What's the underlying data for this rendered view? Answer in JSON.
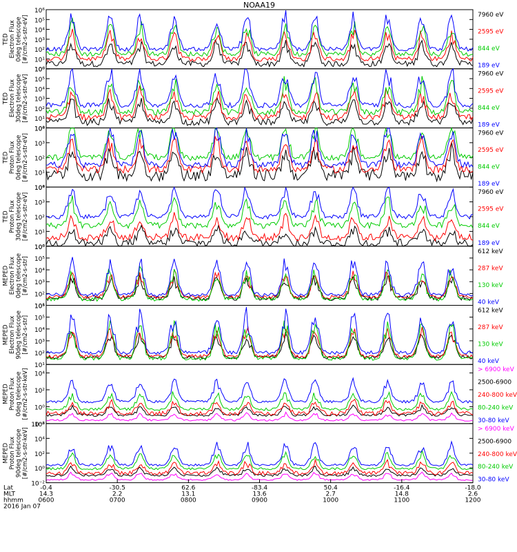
{
  "figure": {
    "title": "NOAA19",
    "footer": {
      "row_labels": [
        "Lat",
        "MLT",
        "hhmm",
        "2016 Jan 07"
      ],
      "columns": [
        {
          "lat": "-0.4",
          "mlt": "14.3",
          "hhmm": "0600"
        },
        {
          "lat": "-30.5",
          "mlt": "2.2",
          "hhmm": "0700"
        },
        {
          "lat": "62.6",
          "mlt": "13.1",
          "hhmm": "0800"
        },
        {
          "lat": "-83.4",
          "mlt": "13.6",
          "hhmm": "0900"
        },
        {
          "lat": "50.4",
          "mlt": "2.7",
          "hhmm": "1000"
        },
        {
          "lat": "-16.4",
          "mlt": "14.8",
          "hhmm": "1100"
        },
        {
          "lat": "-18.0",
          "mlt": "2.6",
          "hhmm": "1200"
        }
      ]
    }
  },
  "chart_data": [
    {
      "type": "line",
      "ylabel_lines": [
        "TED",
        "Electron Flux",
        "0deg telescope",
        "[#/cm2-s-str-eV]"
      ],
      "ylim_exp": [
        0,
        6
      ],
      "tick_labels": [
        "10⁰",
        "10¹",
        "10²",
        "10³",
        "10⁴",
        "10⁵",
        "10⁶"
      ],
      "tick_exps": [
        0,
        1,
        2,
        3,
        4,
        5,
        6
      ],
      "scale": "log",
      "series": [
        {
          "name": "7960 eV",
          "color": "#000000",
          "base": 0.5,
          "amp": 2.5,
          "noise": 0.6
        },
        {
          "name": "2595 eV",
          "color": "#ff0000",
          "base": 1.0,
          "amp": 3.0,
          "noise": 0.5
        },
        {
          "name": "844 eV",
          "color": "#00cc00",
          "base": 1.5,
          "amp": 3.5,
          "noise": 0.5
        },
        {
          "name": "189 eV",
          "color": "#0000ff",
          "base": 2.0,
          "amp": 4.0,
          "noise": 0.4
        }
      ]
    },
    {
      "type": "line",
      "ylabel_lines": [
        "TED",
        "Electron Flux",
        "30deg telescope",
        "[#/cm2-s-str-eV]"
      ],
      "ylim_exp": [
        0,
        6
      ],
      "tick_labels": [
        "10⁰",
        "10¹",
        "10²",
        "10³",
        "10⁴",
        "10⁵",
        "10⁶"
      ],
      "tick_exps": [
        0,
        1,
        2,
        3,
        4,
        5,
        6
      ],
      "scale": "log",
      "series": [
        {
          "name": "7960 eV",
          "color": "#000000",
          "base": 0.6,
          "amp": 2.5,
          "noise": 0.7
        },
        {
          "name": "2595 eV",
          "color": "#ff0000",
          "base": 1.1,
          "amp": 3.0,
          "noise": 0.6
        },
        {
          "name": "844 eV",
          "color": "#00cc00",
          "base": 1.6,
          "amp": 3.6,
          "noise": 0.6
        },
        {
          "name": "189 eV",
          "color": "#0000ff",
          "base": 2.3,
          "amp": 4.2,
          "noise": 0.5
        }
      ]
    },
    {
      "type": "line",
      "ylabel_lines": [
        "TED",
        "Proton Flux",
        "0deg telescope",
        "[#/cm2-s-str-eV]"
      ],
      "ylim_exp": [
        0,
        4
      ],
      "tick_labels": [
        "10⁰",
        "10¹",
        "10²",
        "10³",
        "10⁴"
      ],
      "tick_exps": [
        0,
        1,
        2,
        3,
        4
      ],
      "scale": "log",
      "series": [
        {
          "name": "7960 eV",
          "color": "#000000",
          "base": 0.8,
          "amp": 2.0,
          "noise": 0.8
        },
        {
          "name": "2595 eV",
          "color": "#ff0000",
          "base": 1.2,
          "amp": 2.3,
          "noise": 0.5
        },
        {
          "name": "844 eV",
          "color": "#00cc00",
          "base": 2.0,
          "amp": 2.6,
          "noise": 0.4
        },
        {
          "name": "189 eV",
          "color": "#0000ff",
          "base": 1.5,
          "amp": 2.9,
          "noise": 0.4
        }
      ]
    },
    {
      "type": "line",
      "ylabel_lines": [
        "TED",
        "Proton Flux",
        "30deg telescope",
        "[#/cm2-s-str-eV]"
      ],
      "ylim_exp": [
        0,
        4
      ],
      "tick_labels": [
        "10⁰",
        "10¹",
        "10²",
        "10³",
        "10⁴"
      ],
      "tick_exps": [
        0,
        1,
        2,
        3,
        4
      ],
      "scale": "log",
      "series": [
        {
          "name": "7960 eV",
          "color": "#000000",
          "base": 0.2,
          "amp": 1.2,
          "noise": 0.6
        },
        {
          "name": "2595 eV",
          "color": "#ff0000",
          "base": 0.6,
          "amp": 1.6,
          "noise": 0.5
        },
        {
          "name": "844 eV",
          "color": "#00cc00",
          "base": 1.4,
          "amp": 2.0,
          "noise": 0.4
        },
        {
          "name": "189 eV",
          "color": "#0000ff",
          "base": 2.0,
          "amp": 2.4,
          "noise": 0.3
        }
      ]
    },
    {
      "type": "line",
      "ylabel_lines": [
        "MEPED",
        "Electron Flux",
        "0deg telescope",
        "[#/cm2-s-str]"
      ],
      "ylim_exp": [
        1,
        6
      ],
      "tick_labels": [
        "10¹",
        "10²",
        "10³",
        "10⁴",
        "10⁵",
        "10⁶"
      ],
      "tick_exps": [
        1,
        2,
        3,
        4,
        5,
        6
      ],
      "scale": "log",
      "series": [
        {
          "name": "612 keV",
          "color": "#000000",
          "base": 1.6,
          "amp": 2.0,
          "noise": 0.4
        },
        {
          "name": "287 keV",
          "color": "#ff0000",
          "base": 1.7,
          "amp": 2.3,
          "noise": 0.3
        },
        {
          "name": "130 keV",
          "color": "#00cc00",
          "base": 1.5,
          "amp": 2.8,
          "noise": 0.3
        },
        {
          "name": "40 keV",
          "color": "#0000ff",
          "base": 1.9,
          "amp": 3.3,
          "noise": 0.3
        }
      ]
    },
    {
      "type": "line",
      "ylabel_lines": [
        "MEPED",
        "Electron Flux",
        "90deg telescope",
        "[#/cm2-s-str]"
      ],
      "ylim_exp": [
        1,
        6
      ],
      "tick_labels": [
        "10¹",
        "10²",
        "10³",
        "10⁴",
        "10⁵",
        "10⁶"
      ],
      "tick_exps": [
        1,
        2,
        3,
        4,
        5,
        6
      ],
      "scale": "log",
      "series": [
        {
          "name": "612 keV",
          "color": "#000000",
          "base": 1.6,
          "amp": 2.3,
          "noise": 0.3
        },
        {
          "name": "287 keV",
          "color": "#ff0000",
          "base": 1.7,
          "amp": 2.7,
          "noise": 0.3
        },
        {
          "name": "130 keV",
          "color": "#00cc00",
          "base": 1.5,
          "amp": 3.3,
          "noise": 0.3
        },
        {
          "name": "40 keV",
          "color": "#0000ff",
          "base": 2.0,
          "amp": 3.8,
          "noise": 0.3
        }
      ]
    },
    {
      "type": "line",
      "ylabel_lines": [
        "MEPED",
        "Proton Flux",
        "0deg telescope",
        "[#/cm2-s-str-keV]"
      ],
      "ylim_exp": [
        -2,
        5
      ],
      "tick_labels": [
        "10⁻²",
        "10⁰",
        "10²",
        "10⁴"
      ],
      "tick_exps": [
        -2,
        0,
        2,
        4
      ],
      "scale": "log",
      "series": [
        {
          "name": "> 6900 keV",
          "color": "#ff00ff",
          "base": -1.6,
          "amp": 0.9,
          "noise": 0.2
        },
        {
          "name": "2500-6900",
          "color": "#000000",
          "base": -1.0,
          "amp": 1.2,
          "noise": 0.3
        },
        {
          "name": "240-800 keV",
          "color": "#ff0000",
          "base": -0.8,
          "amp": 1.6,
          "noise": 0.5
        },
        {
          "name": "80-240 keV",
          "color": "#00cc00",
          "base": -0.3,
          "amp": 2.2,
          "noise": 0.3
        },
        {
          "name": "30-80 keV",
          "color": "#0000ff",
          "base": 0.6,
          "amp": 3.0,
          "noise": 0.3
        }
      ]
    },
    {
      "type": "line",
      "ylabel_lines": [
        "MEPED",
        "Proton Flux",
        "90deg telescope",
        "[#/cm2-s-str-keV]"
      ],
      "ylim_exp": [
        -2,
        6
      ],
      "tick_labels": [
        "10⁻²",
        "10⁰",
        "10²",
        "10⁴",
        "10⁶"
      ],
      "tick_exps": [
        -2,
        0,
        2,
        4,
        6
      ],
      "scale": "log",
      "series": [
        {
          "name": "> 6900 keV",
          "color": "#ff00ff",
          "base": -1.6,
          "amp": 1.0,
          "noise": 0.2
        },
        {
          "name": "2500-6900",
          "color": "#000000",
          "base": -1.0,
          "amp": 1.2,
          "noise": 0.3
        },
        {
          "name": "240-800 keV",
          "color": "#ff0000",
          "base": -0.7,
          "amp": 1.7,
          "noise": 0.5
        },
        {
          "name": "80-240 keV",
          "color": "#00cc00",
          "base": -0.1,
          "amp": 2.4,
          "noise": 0.3
        },
        {
          "name": "30-80 keV",
          "color": "#0000ff",
          "base": 0.4,
          "amp": 3.3,
          "noise": 0.3
        }
      ]
    }
  ]
}
